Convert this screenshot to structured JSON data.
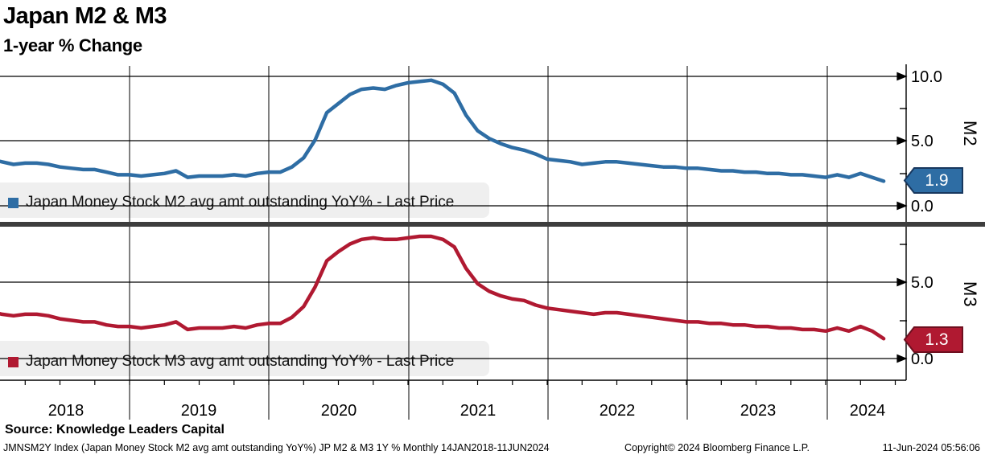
{
  "header": {
    "title": "Japan M2 & M3",
    "subtitle": "1-year % Change"
  },
  "colors": {
    "m2_blue": "#2E6DA4",
    "m2_border": "#17375E",
    "m3_red": "#B01931",
    "m3_border": "#6E0F1F",
    "grid": "#000000",
    "separator": "#3D3D3D",
    "legend_bg": "#EFEFEF"
  },
  "panels": {
    "m2": {
      "axis_label": "M2",
      "legend": "Japan Money Stock M2 avg amt outstanding YoY% - Last Price",
      "last_price": "1.9",
      "tick_10": "10.0",
      "tick_5": "5.0",
      "tick_0": "0.0"
    },
    "m3": {
      "axis_label": "M3",
      "legend": "Japan Money Stock M3 avg amt outstanding YoY% - Last Price",
      "last_price": "1.3",
      "tick_5": "5.0",
      "tick_0": "0.0"
    }
  },
  "x_axis": {
    "years": [
      "2018",
      "2019",
      "2020",
      "2021",
      "2022",
      "2023",
      "2024"
    ]
  },
  "source": "Source: Knowledge Leaders Capital",
  "footer": {
    "left": "JMNSM2Y Index (Japan Money Stock M2 avg amt outstanding YoY%) JP M2 & M3 1Y %  Monthly 14JAN2018-11JUN2024",
    "copyright": "Copyright© 2024 Bloomberg Finance L.P.",
    "timestamp": "11-Jun-2024 05:56:06"
  },
  "chart_data": {
    "type": "line",
    "title": "Japan M2 & M3 — 1-year % Change",
    "x_unit": "month",
    "x_start": "2018-01",
    "x_end": "2024-06",
    "x_tick_labels": [
      "2018",
      "2019",
      "2020",
      "2021",
      "2022",
      "2023",
      "2024"
    ],
    "grid": true,
    "series": [
      {
        "name": "Japan Money Stock M2 avg amt outstanding YoY% - Last Price",
        "panel": "M2",
        "color": "#2E6DA4",
        "last_price": 1.9,
        "ylim": [
          -1.2,
          10.9
        ],
        "yticks": [
          0.0,
          5.0,
          10.0
        ],
        "values": [
          3.6,
          3.4,
          3.2,
          3.3,
          3.3,
          3.2,
          3.0,
          2.9,
          2.8,
          2.8,
          2.6,
          2.4,
          2.4,
          2.3,
          2.4,
          2.5,
          2.7,
          2.2,
          2.3,
          2.3,
          2.3,
          2.4,
          2.3,
          2.5,
          2.6,
          2.6,
          3.0,
          3.7,
          5.1,
          7.2,
          7.9,
          8.6,
          9.0,
          9.1,
          9.0,
          9.3,
          9.5,
          9.6,
          9.7,
          9.4,
          8.7,
          7.0,
          5.8,
          5.2,
          4.8,
          4.5,
          4.3,
          4.0,
          3.6,
          3.5,
          3.4,
          3.2,
          3.3,
          3.4,
          3.4,
          3.3,
          3.2,
          3.1,
          3.0,
          3.0,
          2.9,
          2.9,
          2.8,
          2.7,
          2.7,
          2.6,
          2.6,
          2.5,
          2.5,
          2.4,
          2.4,
          2.3,
          2.2,
          2.4,
          2.2,
          2.5,
          2.2,
          1.9
        ]
      },
      {
        "name": "Japan Money Stock M3 avg amt outstanding YoY% - Last Price",
        "panel": "M3",
        "color": "#B01931",
        "last_price": 1.3,
        "ylim": [
          -1.4,
          8.6
        ],
        "yticks": [
          0.0,
          5.0
        ],
        "values": [
          3.1,
          2.9,
          2.8,
          2.9,
          2.9,
          2.8,
          2.6,
          2.5,
          2.4,
          2.4,
          2.2,
          2.1,
          2.1,
          2.0,
          2.1,
          2.2,
          2.4,
          1.9,
          2.0,
          2.0,
          2.0,
          2.1,
          2.0,
          2.2,
          2.3,
          2.3,
          2.7,
          3.4,
          4.7,
          6.4,
          7.0,
          7.5,
          7.8,
          7.9,
          7.8,
          7.8,
          7.9,
          8.0,
          8.0,
          7.8,
          7.3,
          5.9,
          4.9,
          4.4,
          4.1,
          3.9,
          3.8,
          3.5,
          3.3,
          3.2,
          3.1,
          3.0,
          2.9,
          3.0,
          3.0,
          2.9,
          2.8,
          2.7,
          2.6,
          2.5,
          2.4,
          2.4,
          2.3,
          2.3,
          2.2,
          2.2,
          2.1,
          2.1,
          2.0,
          2.0,
          1.9,
          1.9,
          1.8,
          2.0,
          1.8,
          2.1,
          1.8,
          1.3
        ]
      }
    ]
  }
}
